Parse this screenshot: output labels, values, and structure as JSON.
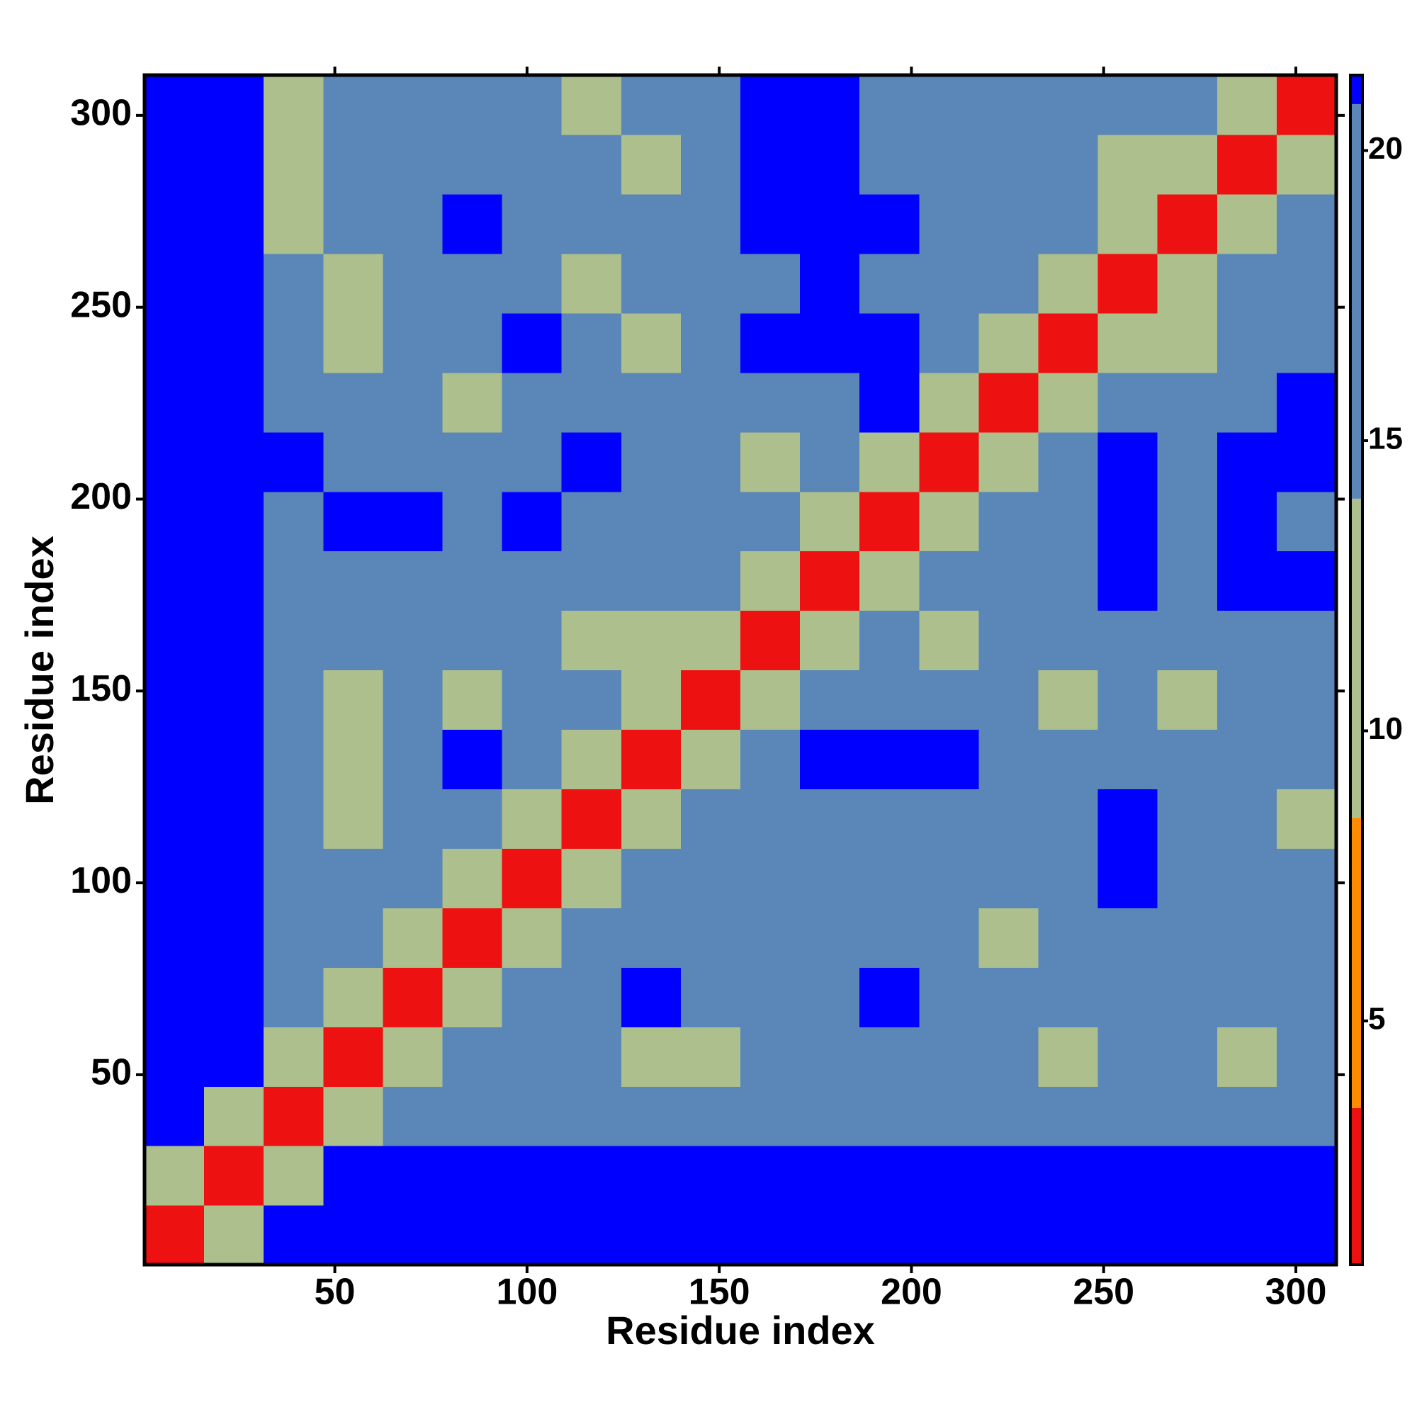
{
  "chart_data": {
    "type": "heatmap",
    "xlabel": "Residue index",
    "ylabel": "Residue index",
    "xlim": [
      0.5,
      310.5
    ],
    "ylim": [
      0.5,
      310.5
    ],
    "xticks": [
      50,
      100,
      150,
      200,
      250,
      300
    ],
    "yticks": [
      50,
      100,
      150,
      200,
      250,
      300
    ],
    "xbins": [
      0.5,
      16,
      31.5,
      47,
      62.5,
      78,
      93.5,
      109,
      124.5,
      140,
      155.5,
      171,
      186.5,
      202,
      217.5,
      233,
      248.5,
      264,
      279.5,
      295,
      310.5
    ],
    "ybins": [
      0.5,
      16,
      31.5,
      47,
      62.5,
      78,
      93.5,
      109,
      124.5,
      140,
      155.5,
      171,
      186.5,
      202,
      217.5,
      233,
      248.5,
      264,
      279.5,
      295,
      310.5
    ],
    "values": [
      [
        3,
        12,
        22,
        22,
        22,
        22,
        22,
        22,
        22,
        22,
        22,
        22,
        22,
        22,
        22,
        22,
        22,
        22,
        22,
        22
      ],
      [
        12,
        3,
        11,
        22,
        22,
        22,
        22,
        22,
        22,
        22,
        22,
        22,
        22,
        22,
        22,
        22,
        22,
        22,
        22,
        22
      ],
      [
        22,
        11,
        3,
        11,
        17,
        17,
        17,
        17,
        17,
        17,
        20,
        17,
        17,
        20,
        17,
        17,
        17,
        17,
        17,
        17
      ],
      [
        22,
        22,
        11,
        3,
        11,
        17,
        17,
        17,
        12,
        10,
        17,
        20,
        17,
        17,
        17,
        11,
        17,
        14,
        12,
        17
      ],
      [
        22,
        22,
        17,
        11,
        3,
        11,
        17,
        17,
        22,
        17,
        17,
        17,
        22,
        17,
        17,
        17,
        17,
        17,
        17,
        20
      ],
      [
        22,
        22,
        20,
        17,
        11,
        3,
        11,
        17,
        17,
        17,
        17,
        17,
        17,
        17,
        12,
        17,
        17,
        17,
        17,
        17
      ],
      [
        22,
        22,
        20,
        17,
        17,
        11,
        3,
        11,
        17,
        17,
        17,
        14,
        17,
        14,
        17,
        17,
        22,
        17,
        17,
        17
      ],
      [
        22,
        22,
        17,
        13,
        17,
        17,
        11,
        3,
        11,
        17,
        17,
        17,
        17,
        17,
        17,
        17,
        22,
        17,
        17,
        13
      ],
      [
        22,
        22,
        17,
        12,
        17,
        22,
        17,
        11,
        3,
        11,
        17,
        22,
        22,
        22,
        17,
        14,
        17,
        17,
        14,
        17
      ],
      [
        22,
        22,
        17,
        12,
        17,
        13,
        17,
        14,
        11,
        3,
        11,
        17,
        17,
        17,
        17,
        13,
        17,
        13,
        17,
        17
      ],
      [
        22,
        22,
        17,
        14,
        17,
        17,
        17,
        13,
        13,
        11,
        3,
        11,
        17,
        10,
        14,
        14,
        17,
        17,
        17,
        17
      ],
      [
        22,
        22,
        20,
        17,
        17,
        17,
        14,
        17,
        17,
        17,
        11,
        3,
        11,
        17,
        14,
        17,
        22,
        17,
        22,
        22
      ],
      [
        22,
        22,
        17,
        22,
        22,
        17,
        22,
        17,
        20,
        17,
        17,
        11,
        3,
        11,
        17,
        17,
        22,
        17,
        22,
        17
      ],
      [
        22,
        22,
        22,
        17,
        17,
        17,
        17,
        22,
        17,
        14,
        10,
        17,
        11,
        3,
        11,
        17,
        22,
        17,
        22,
        22
      ],
      [
        22,
        22,
        17,
        17,
        17,
        12,
        17,
        17,
        17,
        14,
        17,
        17,
        22,
        11,
        3,
        11,
        17,
        17,
        17,
        22
      ],
      [
        22,
        22,
        17,
        12,
        17,
        17,
        22,
        17,
        13,
        17,
        22,
        22,
        22,
        17,
        11,
        3,
        11,
        13,
        17,
        17
      ],
      [
        22,
        22,
        17,
        11,
        17,
        17,
        17,
        13,
        17,
        17,
        17,
        22,
        17,
        17,
        17,
        11,
        3,
        11,
        14,
        17
      ],
      [
        22,
        22,
        13,
        17,
        20,
        22,
        17,
        17,
        17,
        17,
        22,
        22,
        22,
        17,
        17,
        14,
        11,
        3,
        11,
        14
      ],
      [
        22,
        22,
        12,
        14,
        17,
        17,
        17,
        17,
        13,
        17,
        22,
        22,
        17,
        17,
        17,
        17,
        13,
        11,
        3,
        11
      ],
      [
        22,
        22,
        13,
        17,
        17,
        17,
        17,
        13,
        17,
        17,
        22,
        22,
        20,
        17,
        17,
        17,
        17,
        14,
        11,
        3
      ]
    ],
    "zlim": [
      0.8,
      21.3
    ],
    "zticks": [
      5,
      10,
      15,
      20
    ],
    "color_breaks": [
      3.5,
      8.5,
      14,
      20.8
    ],
    "colors": [
      "#ee1111",
      "#ff8c00",
      "#adbf8c",
      "#5a86b8",
      "#0000ff"
    ]
  }
}
